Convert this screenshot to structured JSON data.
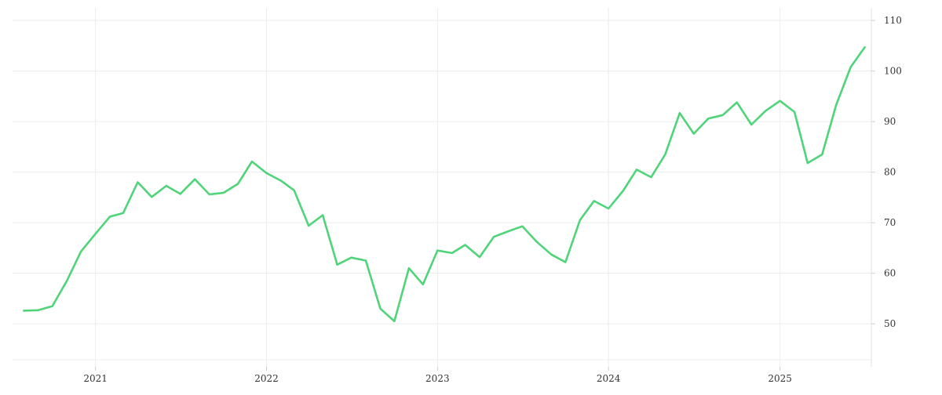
{
  "chart_data": {
    "type": "line",
    "title": "",
    "xlabel": "",
    "ylabel": "",
    "x_ticks": [
      "2021",
      "2022",
      "2023",
      "2024",
      "2025"
    ],
    "y_ticks": [
      50,
      60,
      70,
      80,
      90,
      100,
      110
    ],
    "xlim": [
      "2020-07-08",
      "2025-07-15"
    ],
    "ylim": [
      41.5,
      112.5
    ],
    "y_axis_position": "right",
    "grid": true,
    "line_color": "#4fd47a",
    "series": [
      {
        "x": [
          "2020-08-01",
          "2020-09-01",
          "2020-10-01",
          "2020-11-01",
          "2020-12-01",
          "2021-01-01",
          "2021-02-01",
          "2021-03-01",
          "2021-04-01",
          "2021-05-01",
          "2021-06-01",
          "2021-07-01",
          "2021-08-01",
          "2021-09-01",
          "2021-10-01",
          "2021-11-01",
          "2021-12-01",
          "2022-01-01",
          "2022-02-01",
          "2022-03-01",
          "2022-04-01",
          "2022-05-01",
          "2022-06-01",
          "2022-07-01",
          "2022-08-01",
          "2022-09-01",
          "2022-10-01",
          "2022-11-01",
          "2022-12-01",
          "2023-01-01",
          "2023-02-01",
          "2023-03-01",
          "2023-04-01",
          "2023-05-01",
          "2023-06-01",
          "2023-07-01",
          "2023-08-01",
          "2023-09-01",
          "2023-10-01",
          "2023-11-01",
          "2023-12-01",
          "2024-01-01",
          "2024-02-01",
          "2024-03-01",
          "2024-04-01",
          "2024-05-01",
          "2024-06-01",
          "2024-07-01",
          "2024-08-01",
          "2024-09-01",
          "2024-10-01",
          "2024-11-01",
          "2024-12-01",
          "2025-01-01",
          "2025-02-01",
          "2025-03-01",
          "2025-04-01",
          "2025-05-01",
          "2025-06-01",
          "2025-07-01"
        ],
        "values": [
          52.6,
          52.7,
          53.5,
          58.5,
          64.3,
          67.8,
          71.2,
          71.9,
          78.0,
          75.1,
          77.3,
          75.7,
          78.6,
          75.6,
          75.9,
          77.7,
          82.1,
          79.8,
          78.3,
          76.4,
          69.4,
          71.5,
          61.7,
          63.1,
          62.5,
          53.0,
          50.5,
          61.0,
          57.8,
          64.5,
          64.0,
          65.6,
          63.2,
          67.2,
          68.3,
          69.3,
          66.2,
          63.7,
          62.2,
          70.5,
          74.3,
          72.8,
          76.3,
          80.5,
          79.0,
          83.5,
          91.7,
          87.6,
          90.6,
          91.3,
          93.8,
          89.4,
          92.1,
          94.1,
          91.9,
          81.8,
          83.5,
          93.3,
          100.8,
          104.7
        ]
      }
    ]
  }
}
